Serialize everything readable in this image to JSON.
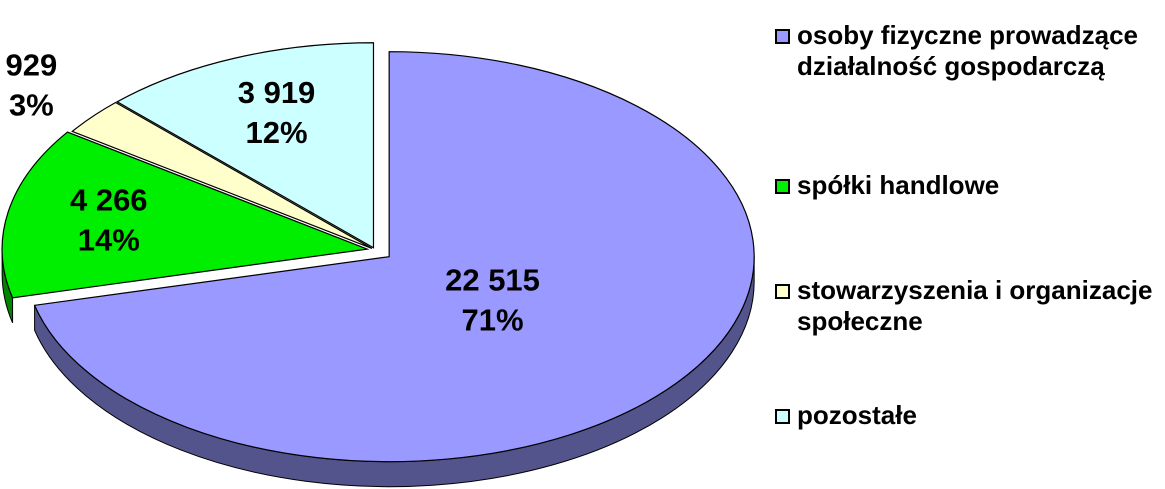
{
  "chart_data": {
    "type": "pie",
    "categories": [
      "osoby fizyczne prowadzące działalność gospodarczą",
      "spółki handlowe",
      "stowarzyszenia i organizacje społeczne",
      "pozostałe"
    ],
    "values": [
      22515,
      4266,
      929,
      3919
    ],
    "value_labels": [
      "22 515",
      "4 266",
      "929",
      "3 919"
    ],
    "percent_labels": [
      "71%",
      "14%",
      "3%",
      "12%"
    ],
    "colors": [
      "#9999ff",
      "#00ee00",
      "#ffffcc",
      "#ccffff"
    ],
    "legend": "right"
  }
}
